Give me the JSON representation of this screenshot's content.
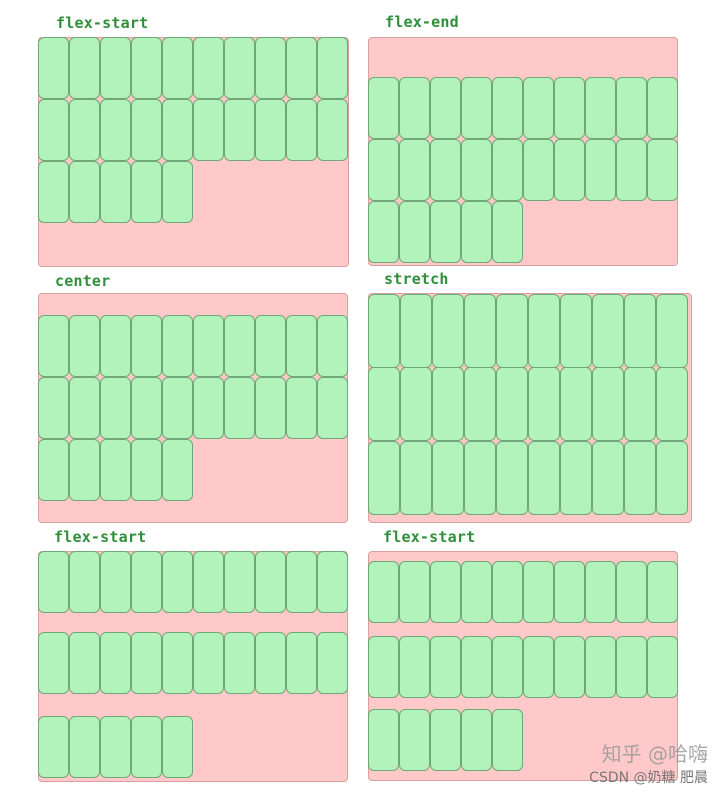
{
  "panels": [
    {
      "title": "flex-start",
      "rows": [
        10,
        10,
        5
      ]
    },
    {
      "title": "flex-end",
      "rows": [
        10,
        10,
        5
      ]
    },
    {
      "title": "center",
      "rows": [
        10,
        10,
        5
      ]
    },
    {
      "title": "stretch",
      "rows": [
        10,
        10,
        10
      ]
    },
    {
      "title": "flex-start",
      "rows": [
        10,
        10,
        5
      ]
    },
    {
      "title": "flex-start",
      "rows": [
        10,
        10,
        5
      ]
    }
  ],
  "watermark": {
    "line1": "知乎 @哈嗨",
    "line2": "CSDN @奶糖 肥晨"
  },
  "colors": {
    "container": "#ffc9c9",
    "item": "#b2f2bb",
    "title": "#2f8f3a"
  }
}
